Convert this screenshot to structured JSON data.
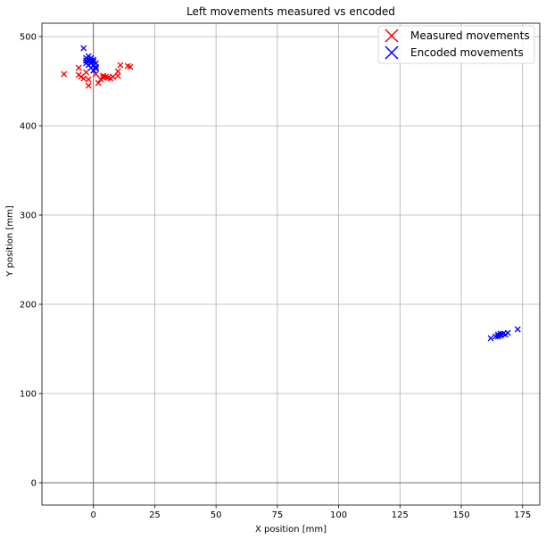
{
  "chart_data": {
    "type": "scatter",
    "title": "Left movements measured vs encoded",
    "xlabel": "X position [mm]",
    "ylabel": "Y position [mm]",
    "xlim": [
      -21,
      182
    ],
    "ylim": [
      -25,
      515
    ],
    "xticks": [
      0,
      25,
      50,
      75,
      100,
      125,
      150,
      175
    ],
    "yticks": [
      0,
      100,
      200,
      300,
      400,
      500
    ],
    "grid": true,
    "legend_position": "top-right",
    "series": [
      {
        "name": "Measured movements",
        "color": "#ff0000",
        "marker": "x",
        "points": [
          [
            -12,
            458
          ],
          [
            -6,
            465
          ],
          [
            -6,
            457
          ],
          [
            -5,
            455
          ],
          [
            -4,
            453
          ],
          [
            -3,
            460
          ],
          [
            -2,
            452
          ],
          [
            -2,
            445
          ],
          [
            -1,
            470
          ],
          [
            0,
            462
          ],
          [
            2,
            448
          ],
          [
            3,
            452
          ],
          [
            4,
            456
          ],
          [
            5,
            455
          ],
          [
            6,
            454
          ],
          [
            7,
            453
          ],
          [
            8,
            455
          ],
          [
            10,
            461
          ],
          [
            10,
            456
          ],
          [
            11,
            468
          ],
          [
            14,
            467
          ],
          [
            15,
            466
          ],
          [
            1,
            458
          ],
          [
            4,
            454
          ]
        ]
      },
      {
        "name": "Encoded movements",
        "color": "#0000ff",
        "marker": "x",
        "points": [
          [
            -4,
            487
          ],
          [
            -3,
            476
          ],
          [
            -3,
            470
          ],
          [
            -2,
            474
          ],
          [
            -2,
            468
          ],
          [
            -1,
            476
          ],
          [
            -1,
            470
          ],
          [
            -1,
            465
          ],
          [
            0,
            474
          ],
          [
            0,
            468
          ],
          [
            0,
            462
          ],
          [
            1,
            466
          ],
          [
            1,
            470
          ],
          [
            -2,
            478
          ],
          [
            0,
            472
          ],
          [
            -1,
            473
          ],
          [
            1,
            464
          ],
          [
            -3,
            473
          ],
          [
            162,
            162
          ],
          [
            164,
            164
          ],
          [
            165,
            166
          ],
          [
            166,
            165
          ],
          [
            167,
            167
          ],
          [
            168,
            166
          ],
          [
            169,
            168
          ],
          [
            173,
            172
          ],
          [
            166,
            167
          ],
          [
            165,
            164
          ]
        ]
      }
    ]
  }
}
